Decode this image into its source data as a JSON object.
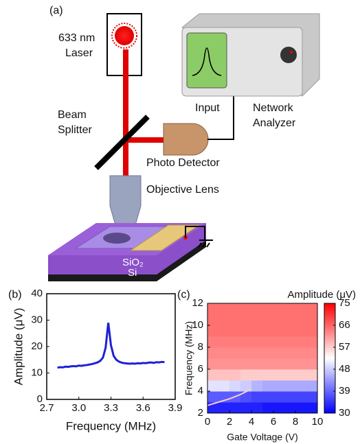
{
  "panel_labels": [
    "(a)",
    "(b)",
    "(c)"
  ],
  "diagram": {
    "laser": [
      "633 nm",
      "Laser"
    ],
    "beam_splitter": [
      "Beam",
      "Splitter"
    ],
    "input": "Input",
    "network_analyzer": [
      "Network",
      "Analyzer"
    ],
    "photo_detector": "Photo Detector",
    "objective_lens": "Objective Lens",
    "layers": [
      "SiO₂",
      "Si"
    ]
  },
  "chart_data": [
    {
      "type": "line",
      "xlabel": "Frequency (MHz)",
      "ylabel": "Amplitude (μV)",
      "color": "#1f1fd6",
      "x": [
        2.8,
        2.825,
        2.85,
        2.875,
        2.9,
        2.925,
        2.95,
        2.975,
        3.0,
        3.025,
        3.05,
        3.075,
        3.1,
        3.125,
        3.15,
        3.175,
        3.2,
        3.225,
        3.25,
        3.275,
        3.3,
        3.325,
        3.35,
        3.375,
        3.4,
        3.425,
        3.45,
        3.475,
        3.5,
        3.525,
        3.55,
        3.575,
        3.6,
        3.625,
        3.65,
        3.675,
        3.7,
        3.725,
        3.75,
        3.775,
        3.8
      ],
      "values": [
        12.0,
        12.2,
        12.1,
        12.4,
        12.3,
        12.5,
        12.6,
        12.5,
        12.8,
        12.7,
        12.9,
        13.0,
        13.2,
        13.4,
        13.7,
        14.0,
        14.6,
        15.8,
        19.5,
        29.0,
        20.5,
        16.5,
        15.0,
        14.3,
        13.9,
        13.7,
        13.6,
        13.5,
        13.6,
        13.5,
        13.7,
        13.6,
        13.8,
        13.7,
        13.9,
        14.0,
        13.8,
        14.1,
        14.0,
        14.2,
        14.1
      ],
      "xlim": [
        2.7,
        3.9
      ],
      "xticks": [
        2.7,
        {
          "value": 3.0,
          "label": "3.0"
        },
        3.3,
        3.6,
        3.9
      ],
      "ylim": [
        0,
        40
      ],
      "yticks": [
        0,
        10,
        20,
        30,
        40
      ]
    },
    {
      "type": "heatmap",
      "xlabel": "Gate Voltage (V)",
      "ylabel": "Frequency (MHz)",
      "colorbar_title": "Amplitude (μV)",
      "x_edges": [
        0,
        1,
        2,
        3,
        4,
        5,
        6,
        7,
        8,
        9,
        10
      ],
      "y_edges": [
        2,
        3,
        4,
        5,
        6,
        7,
        8,
        9,
        10,
        11,
        12
      ],
      "z": [
        [
          33,
          33,
          33,
          33,
          33,
          32,
          32,
          32,
          32,
          32
        ],
        [
          38,
          38,
          38,
          37,
          36,
          36,
          36,
          36,
          36,
          36
        ],
        [
          50,
          50,
          49,
          48,
          46,
          45,
          45,
          45,
          45,
          45
        ],
        [
          58,
          58,
          58,
          57,
          57,
          57,
          57,
          57,
          57,
          57
        ],
        [
          62,
          62,
          62,
          62,
          62,
          62,
          62,
          62,
          62,
          62
        ],
        [
          63,
          63,
          63,
          63,
          63,
          63,
          63,
          63,
          63,
          63
        ],
        [
          64,
          64,
          64,
          64,
          64,
          64,
          64,
          64,
          64,
          64
        ],
        [
          65,
          65,
          65,
          65,
          65,
          65,
          65,
          65,
          65,
          65
        ],
        [
          65,
          65,
          65,
          65,
          65,
          65,
          65,
          65,
          65,
          65
        ],
        [
          65,
          65,
          65,
          65,
          65,
          65,
          65,
          65,
          65,
          65
        ]
      ],
      "trace": {
        "x": [
          0,
          1,
          2,
          3,
          4
        ],
        "values": [
          2.7,
          3.0,
          3.3,
          3.7,
          4.2
        ],
        "color": "#f5d0c8"
      },
      "xlim": [
        0,
        10
      ],
      "xticks": [
        0,
        2,
        4,
        6,
        8,
        10
      ],
      "ylim": [
        2,
        12
      ],
      "yticks": [
        2,
        4,
        6,
        8,
        10,
        12
      ],
      "clim": [
        30,
        75
      ],
      "cticks": [
        30,
        39,
        48,
        57,
        66,
        75
      ]
    }
  ]
}
